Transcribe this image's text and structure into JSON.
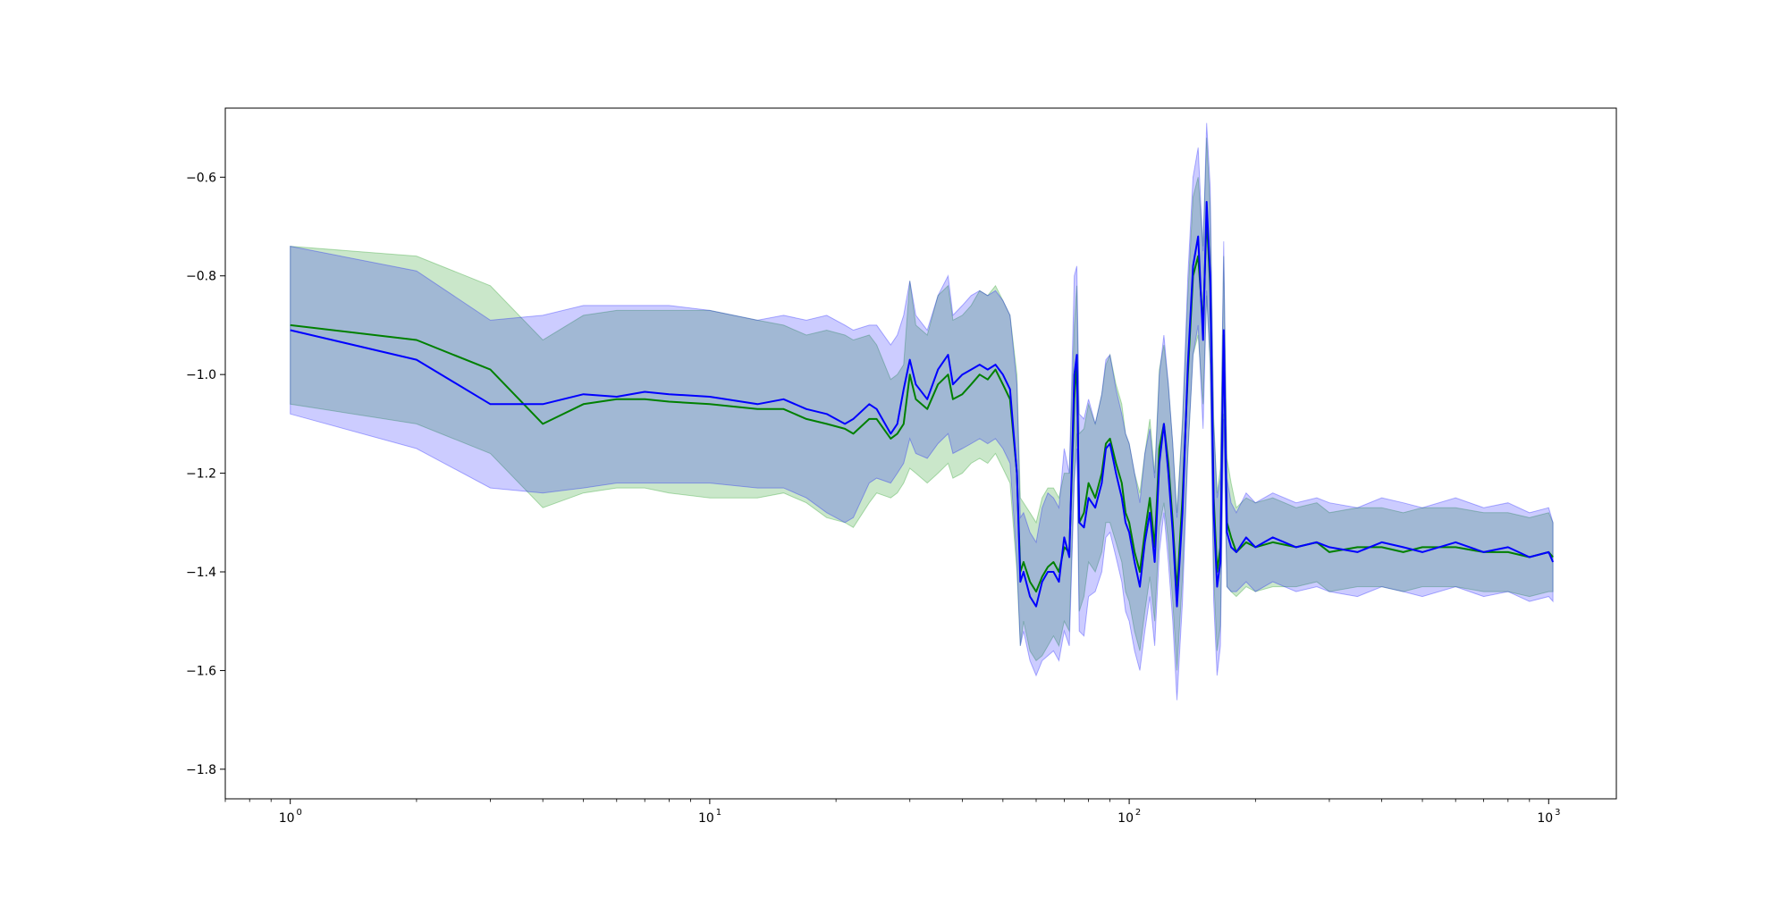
{
  "chart_data": {
    "type": "line",
    "title": "",
    "xlabel": "",
    "ylabel": "",
    "x_scale": "log",
    "xlim": [
      0.7,
      1450
    ],
    "ylim": [
      -1.86,
      -0.46
    ],
    "grid": false,
    "legend": "none",
    "x_ticks": [
      {
        "value": 1,
        "label": "10",
        "exp": "0"
      },
      {
        "value": 10,
        "label": "10",
        "exp": "1"
      },
      {
        "value": 100,
        "label": "10",
        "exp": "2"
      },
      {
        "value": 1000,
        "label": "10",
        "exp": "3"
      }
    ],
    "y_ticks": [
      {
        "value": -0.6,
        "label": "−0.6"
      },
      {
        "value": -0.8,
        "label": "−0.8"
      },
      {
        "value": -1.0,
        "label": "−1.0"
      },
      {
        "value": -1.2,
        "label": "−1.2"
      },
      {
        "value": -1.4,
        "label": "−1.4"
      },
      {
        "value": -1.6,
        "label": "−1.6"
      },
      {
        "value": -1.8,
        "label": "−1.8"
      }
    ],
    "series": [
      {
        "color": "#008000",
        "band_color": "#2ca02c",
        "band_opacity": 0.25,
        "x": [
          1,
          2,
          3,
          4,
          5,
          6,
          7,
          8,
          10,
          13,
          15,
          17,
          19,
          21,
          22,
          24,
          25,
          27,
          28,
          29,
          30,
          31,
          33,
          35,
          37,
          38,
          40,
          42,
          44,
          46,
          48,
          50,
          52,
          54,
          55,
          56,
          58,
          60,
          62,
          64,
          66,
          68,
          70,
          72,
          74,
          75,
          76,
          78,
          80,
          83,
          86,
          88,
          90,
          93,
          96,
          98,
          100,
          103,
          106,
          109,
          112,
          115,
          118,
          121,
          124,
          127,
          130,
          134,
          138,
          142,
          146,
          150,
          153,
          156,
          159,
          162,
          165,
          168,
          171,
          175,
          180,
          190,
          200,
          220,
          250,
          280,
          300,
          350,
          400,
          450,
          500,
          600,
          700,
          800,
          900,
          1000,
          1024
        ],
        "y": [
          -0.9,
          -0.93,
          -0.99,
          -1.1,
          -1.06,
          -1.05,
          -1.05,
          -1.055,
          -1.06,
          -1.07,
          -1.07,
          -1.09,
          -1.1,
          -1.11,
          -1.12,
          -1.09,
          -1.09,
          -1.13,
          -1.12,
          -1.1,
          -1.0,
          -1.05,
          -1.07,
          -1.02,
          -1.0,
          -1.05,
          -1.04,
          -1.02,
          -1.0,
          -1.01,
          -0.99,
          -1.02,
          -1.05,
          -1.2,
          -1.4,
          -1.38,
          -1.42,
          -1.44,
          -1.41,
          -1.39,
          -1.38,
          -1.4,
          -1.35,
          -1.36,
          -1.05,
          -0.97,
          -1.3,
          -1.28,
          -1.22,
          -1.25,
          -1.2,
          -1.14,
          -1.13,
          -1.18,
          -1.22,
          -1.28,
          -1.3,
          -1.36,
          -1.4,
          -1.32,
          -1.25,
          -1.35,
          -1.15,
          -1.1,
          -1.18,
          -1.3,
          -1.44,
          -1.25,
          -1.0,
          -0.8,
          -0.76,
          -0.9,
          -0.68,
          -0.82,
          -1.25,
          -1.4,
          -1.35,
          -0.92,
          -1.3,
          -1.33,
          -1.36,
          -1.34,
          -1.35,
          -1.34,
          -1.35,
          -1.34,
          -1.36,
          -1.35,
          -1.35,
          -1.36,
          -1.35,
          -1.35,
          -1.36,
          -1.36,
          -1.37,
          -1.36,
          -1.37
        ],
        "lower": [
          -1.06,
          -1.1,
          -1.16,
          -1.27,
          -1.24,
          -1.23,
          -1.23,
          -1.24,
          -1.25,
          -1.25,
          -1.24,
          -1.26,
          -1.29,
          -1.3,
          -1.31,
          -1.26,
          -1.24,
          -1.25,
          -1.24,
          -1.22,
          -1.19,
          -1.2,
          -1.22,
          -1.2,
          -1.18,
          -1.21,
          -1.2,
          -1.18,
          -1.17,
          -1.18,
          -1.16,
          -1.19,
          -1.22,
          -1.4,
          -1.55,
          -1.5,
          -1.56,
          -1.58,
          -1.57,
          -1.55,
          -1.53,
          -1.55,
          -1.5,
          -1.52,
          -1.2,
          -1.12,
          -1.48,
          -1.45,
          -1.38,
          -1.4,
          -1.36,
          -1.3,
          -1.3,
          -1.34,
          -1.38,
          -1.44,
          -1.46,
          -1.52,
          -1.56,
          -1.48,
          -1.41,
          -1.5,
          -1.31,
          -1.26,
          -1.34,
          -1.46,
          -1.6,
          -1.41,
          -1.16,
          -0.96,
          -0.92,
          -1.06,
          -0.84,
          -0.98,
          -1.41,
          -1.56,
          -1.51,
          -1.08,
          -1.43,
          -1.44,
          -1.45,
          -1.43,
          -1.44,
          -1.43,
          -1.43,
          -1.42,
          -1.44,
          -1.43,
          -1.43,
          -1.44,
          -1.43,
          -1.43,
          -1.44,
          -1.44,
          -1.45,
          -1.44,
          -1.44
        ],
        "upper": [
          -0.74,
          -0.76,
          -0.82,
          -0.93,
          -0.88,
          -0.87,
          -0.87,
          -0.87,
          -0.87,
          -0.89,
          -0.9,
          -0.92,
          -0.91,
          -0.92,
          -0.93,
          -0.92,
          -0.94,
          -1.01,
          -1.0,
          -0.98,
          -0.81,
          -0.9,
          -0.92,
          -0.84,
          -0.82,
          -0.89,
          -0.88,
          -0.86,
          -0.83,
          -0.84,
          -0.82,
          -0.85,
          -0.88,
          -1.0,
          -1.25,
          -1.26,
          -1.28,
          -1.3,
          -1.25,
          -1.23,
          -1.23,
          -1.25,
          -1.2,
          -1.2,
          -0.9,
          -0.82,
          -1.12,
          -1.11,
          -1.06,
          -1.1,
          -1.04,
          -0.98,
          -0.96,
          -1.02,
          -1.06,
          -1.12,
          -1.14,
          -1.2,
          -1.24,
          -1.16,
          -1.09,
          -1.2,
          -0.99,
          -0.94,
          -1.02,
          -1.14,
          -1.28,
          -1.09,
          -0.84,
          -0.64,
          -0.6,
          -0.74,
          -0.52,
          -0.66,
          -1.09,
          -1.24,
          -1.19,
          -0.76,
          -1.17,
          -1.22,
          -1.27,
          -1.25,
          -1.26,
          -1.25,
          -1.27,
          -1.26,
          -1.28,
          -1.27,
          -1.27,
          -1.28,
          -1.27,
          -1.27,
          -1.28,
          -1.28,
          -1.29,
          -1.28,
          -1.3
        ]
      },
      {
        "color": "#0000ff",
        "band_color": "#0000ff",
        "band_opacity": 0.2,
        "x": [
          1,
          2,
          3,
          4,
          5,
          6,
          7,
          8,
          10,
          13,
          15,
          17,
          19,
          21,
          22,
          24,
          25,
          27,
          28,
          29,
          30,
          31,
          33,
          35,
          37,
          38,
          40,
          42,
          44,
          46,
          48,
          50,
          52,
          54,
          55,
          56,
          58,
          60,
          62,
          64,
          66,
          68,
          70,
          72,
          74,
          75,
          76,
          78,
          80,
          83,
          86,
          88,
          90,
          93,
          96,
          98,
          100,
          103,
          106,
          109,
          112,
          115,
          118,
          121,
          124,
          127,
          130,
          134,
          138,
          142,
          146,
          150,
          153,
          156,
          159,
          162,
          165,
          168,
          171,
          175,
          180,
          190,
          200,
          220,
          250,
          280,
          300,
          350,
          400,
          450,
          500,
          600,
          700,
          800,
          900,
          1000,
          1024
        ],
        "y": [
          -0.91,
          -0.97,
          -1.06,
          -1.06,
          -1.04,
          -1.045,
          -1.035,
          -1.04,
          -1.045,
          -1.06,
          -1.05,
          -1.07,
          -1.08,
          -1.1,
          -1.09,
          -1.06,
          -1.07,
          -1.12,
          -1.1,
          -1.03,
          -0.97,
          -1.02,
          -1.05,
          -0.99,
          -0.96,
          -1.02,
          -1.0,
          -0.99,
          -0.98,
          -0.99,
          -0.98,
          -1.0,
          -1.03,
          -1.2,
          -1.42,
          -1.4,
          -1.45,
          -1.47,
          -1.42,
          -1.4,
          -1.4,
          -1.42,
          -1.33,
          -1.37,
          -1.0,
          -0.96,
          -1.3,
          -1.31,
          -1.25,
          -1.27,
          -1.22,
          -1.15,
          -1.14,
          -1.2,
          -1.25,
          -1.3,
          -1.32,
          -1.38,
          -1.43,
          -1.34,
          -1.28,
          -1.38,
          -1.18,
          -1.1,
          -1.2,
          -1.32,
          -1.47,
          -1.28,
          -0.98,
          -0.78,
          -0.72,
          -0.93,
          -0.65,
          -0.8,
          -1.28,
          -1.43,
          -1.38,
          -0.91,
          -1.32,
          -1.35,
          -1.36,
          -1.33,
          -1.35,
          -1.33,
          -1.35,
          -1.34,
          -1.35,
          -1.36,
          -1.34,
          -1.35,
          -1.36,
          -1.34,
          -1.36,
          -1.35,
          -1.37,
          -1.36,
          -1.38
        ],
        "lower": [
          -1.08,
          -1.15,
          -1.23,
          -1.24,
          -1.23,
          -1.22,
          -1.22,
          -1.22,
          -1.22,
          -1.23,
          -1.23,
          -1.25,
          -1.28,
          -1.3,
          -1.29,
          -1.22,
          -1.21,
          -1.22,
          -1.2,
          -1.18,
          -1.13,
          -1.16,
          -1.17,
          -1.14,
          -1.12,
          -1.16,
          -1.15,
          -1.14,
          -1.13,
          -1.14,
          -1.13,
          -1.15,
          -1.18,
          -1.38,
          -1.55,
          -1.52,
          -1.58,
          -1.61,
          -1.58,
          -1.57,
          -1.56,
          -1.58,
          -1.52,
          -1.55,
          -1.22,
          -1.15,
          -1.52,
          -1.53,
          -1.45,
          -1.44,
          -1.4,
          -1.33,
          -1.32,
          -1.37,
          -1.42,
          -1.48,
          -1.5,
          -1.56,
          -1.6,
          -1.52,
          -1.45,
          -1.55,
          -1.36,
          -1.28,
          -1.38,
          -1.5,
          -1.66,
          -1.46,
          -1.16,
          -0.96,
          -0.9,
          -1.11,
          -0.83,
          -0.98,
          -1.46,
          -1.61,
          -1.55,
          -1.09,
          -1.43,
          -1.44,
          -1.44,
          -1.42,
          -1.44,
          -1.42,
          -1.44,
          -1.43,
          -1.44,
          -1.45,
          -1.43,
          -1.44,
          -1.45,
          -1.43,
          -1.45,
          -1.44,
          -1.46,
          -1.45,
          -1.46
        ],
        "upper": [
          -0.74,
          -0.79,
          -0.89,
          -0.88,
          -0.86,
          -0.86,
          -0.86,
          -0.86,
          -0.87,
          -0.89,
          -0.88,
          -0.89,
          -0.88,
          -0.9,
          -0.91,
          -0.9,
          -0.9,
          -0.94,
          -0.92,
          -0.88,
          -0.81,
          -0.88,
          -0.91,
          -0.84,
          -0.8,
          -0.88,
          -0.86,
          -0.84,
          -0.83,
          -0.84,
          -0.83,
          -0.85,
          -0.88,
          -1.02,
          -1.29,
          -1.28,
          -1.32,
          -1.34,
          -1.27,
          -1.24,
          -1.25,
          -1.27,
          -1.15,
          -1.2,
          -0.8,
          -0.78,
          -1.08,
          -1.09,
          -1.05,
          -1.1,
          -1.04,
          -0.97,
          -0.96,
          -1.03,
          -1.08,
          -1.12,
          -1.14,
          -1.2,
          -1.26,
          -1.16,
          -1.11,
          -1.21,
          -1.0,
          -0.92,
          -1.02,
          -1.14,
          -1.29,
          -1.1,
          -0.8,
          -0.6,
          -0.54,
          -0.75,
          -0.49,
          -0.62,
          -1.1,
          -1.25,
          -1.21,
          -0.73,
          -1.21,
          -1.26,
          -1.28,
          -1.24,
          -1.26,
          -1.24,
          -1.26,
          -1.25,
          -1.26,
          -1.27,
          -1.25,
          -1.26,
          -1.27,
          -1.25,
          -1.27,
          -1.26,
          -1.28,
          -1.27,
          -1.3
        ]
      }
    ]
  }
}
